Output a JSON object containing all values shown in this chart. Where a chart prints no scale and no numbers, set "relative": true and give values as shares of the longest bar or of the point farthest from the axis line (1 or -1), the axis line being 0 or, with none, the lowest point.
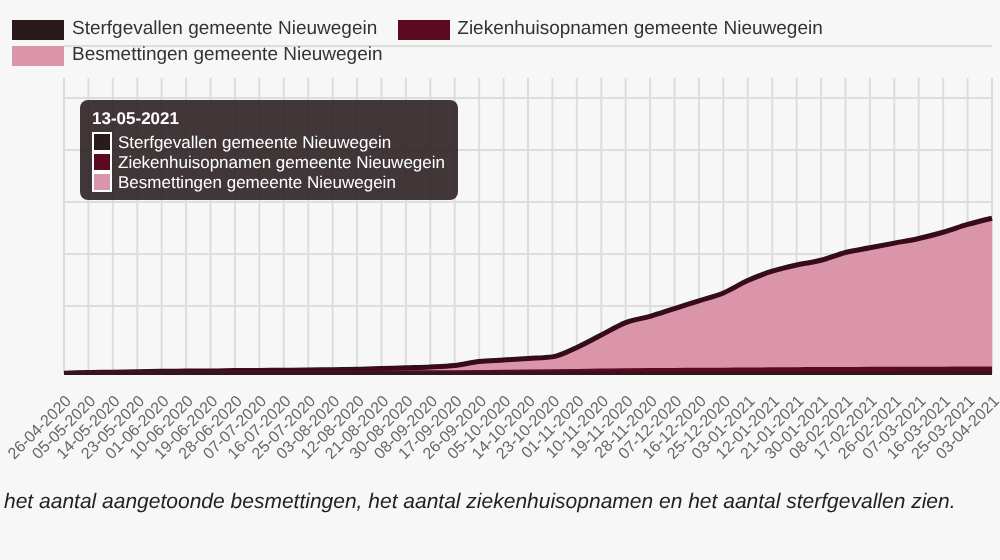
{
  "chart_data": {
    "type": "area",
    "relative": true,
    "grid": true,
    "legend": "top",
    "categories": [
      "26-04-2020",
      "05-05-2020",
      "14-05-2020",
      "23-05-2020",
      "01-06-2020",
      "10-06-2020",
      "19-06-2020",
      "28-06-2020",
      "07-07-2020",
      "16-07-2020",
      "25-07-2020",
      "03-08-2020",
      "12-08-2020",
      "21-08-2020",
      "30-08-2020",
      "08-09-2020",
      "17-09-2020",
      "26-09-2020",
      "05-10-2020",
      "14-10-2020",
      "23-10-2020",
      "01-11-2020",
      "10-11-2020",
      "19-11-2020",
      "28-11-2020",
      "07-12-2020",
      "16-12-2020",
      "25-12-2020",
      "03-01-2021",
      "12-01-2021",
      "21-01-2021",
      "30-01-2021",
      "08-02-2021",
      "17-02-2021",
      "26-02-2021",
      "07-03-2021",
      "16-03-2021",
      "25-03-2021",
      "03-04-2021"
    ],
    "series": [
      {
        "name": "Sterfgevallen gemeente Nieuwegein",
        "color": "#2b1a1c",
        "values": [
          0.002,
          0.003,
          0.003,
          0.003,
          0.003,
          0.003,
          0.003,
          0.003,
          0.003,
          0.003,
          0.003,
          0.003,
          0.003,
          0.003,
          0.003,
          0.003,
          0.003,
          0.003,
          0.003,
          0.004,
          0.004,
          0.004,
          0.005,
          0.005,
          0.005,
          0.005,
          0.006,
          0.006,
          0.006,
          0.006,
          0.007,
          0.007,
          0.007,
          0.007,
          0.007,
          0.008,
          0.008,
          0.008,
          0.008
        ]
      },
      {
        "name": "Ziekenhuisopnamen gemeente Nieuwegein",
        "color": "#5c0a22",
        "values": [
          0.006,
          0.008,
          0.009,
          0.01,
          0.01,
          0.01,
          0.01,
          0.01,
          0.01,
          0.01,
          0.01,
          0.01,
          0.01,
          0.011,
          0.011,
          0.011,
          0.012,
          0.013,
          0.014,
          0.016,
          0.018,
          0.02,
          0.022,
          0.024,
          0.025,
          0.026,
          0.027,
          0.028,
          0.029,
          0.03,
          0.031,
          0.032,
          0.032,
          0.033,
          0.033,
          0.034,
          0.034,
          0.035,
          0.035
        ]
      },
      {
        "name": "Besmettingen gemeente Nieuwegein",
        "color": "#db95ab",
        "values": [
          0.005,
          0.01,
          0.012,
          0.015,
          0.017,
          0.02,
          0.02,
          0.022,
          0.023,
          0.024,
          0.025,
          0.028,
          0.03,
          0.035,
          0.04,
          0.045,
          0.055,
          0.08,
          0.09,
          0.1,
          0.11,
          0.17,
          0.25,
          0.33,
          0.37,
          0.42,
          0.47,
          0.52,
          0.6,
          0.66,
          0.7,
          0.73,
          0.78,
          0.81,
          0.84,
          0.87,
          0.91,
          0.96,
          1.0
        ]
      }
    ],
    "annotations": [
      "het aantal aangetoonde besmettingen, het aantal ziekenhuisopnamen en het aantal sterfgevallen zien.",
      "13-05-2021"
    ]
  }
}
